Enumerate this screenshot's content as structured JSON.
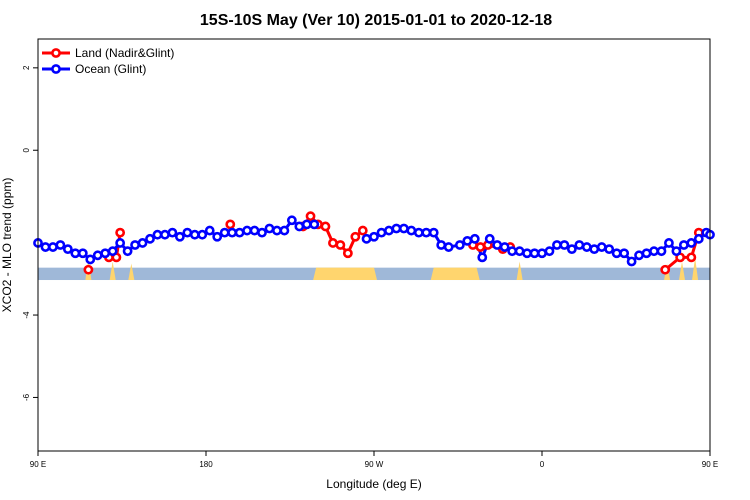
{
  "chart_data": {
    "type": "line",
    "title": "15S-10S May (Ver 10)   2015-01-01 to 2020-12-18",
    "xlabel": "Longitude (deg E)",
    "ylabel": "XCO2 - MLO trend (ppm)",
    "xlim": [
      -90,
      270
    ],
    "ylim": [
      -7.3,
      2.7
    ],
    "x_ticks": [
      -90,
      0,
      90,
      180,
      270
    ],
    "x_tick_labels": [
      "90 E",
      "180",
      "90 W",
      "0",
      "90 E"
    ],
    "y_ticks": [
      -6,
      -4,
      0,
      2
    ],
    "y_tick_labels": [
      "-6",
      "-4",
      "0",
      "2"
    ],
    "grid": false,
    "legend_position": "top-left",
    "series": [
      {
        "name": "Land (Nadir&Glint)",
        "color": "#ff0000",
        "points": [
          [
            -63,
            -2.9
          ],
          [
            -52,
            -2.6
          ],
          [
            -48,
            -2.6
          ],
          [
            -46,
            -2.0
          ],
          [
            13,
            -1.8
          ],
          [
            52,
            -1.85
          ],
          [
            56,
            -1.6
          ],
          [
            60,
            -1.8
          ],
          [
            64,
            -1.85
          ],
          [
            68,
            -2.25
          ],
          [
            72,
            -2.3
          ],
          [
            76,
            -2.5
          ],
          [
            80,
            -2.1
          ],
          [
            84,
            -1.95
          ],
          [
            143,
            -2.3
          ],
          [
            147,
            -2.35
          ],
          [
            151,
            -2.3
          ],
          [
            159,
            -2.4
          ],
          [
            163,
            -2.35
          ],
          [
            246,
            -2.9
          ],
          [
            254,
            -2.6
          ],
          [
            260,
            -2.6
          ],
          [
            264,
            -2.0
          ]
        ]
      },
      {
        "name": "Ocean (Glint)",
        "color": "#0000ff",
        "points": [
          [
            -90,
            -2.25
          ],
          [
            -86,
            -2.35
          ],
          [
            -82,
            -2.35
          ],
          [
            -78,
            -2.3
          ],
          [
            -74,
            -2.4
          ],
          [
            -70,
            -2.5
          ],
          [
            -66,
            -2.5
          ],
          [
            -62,
            -2.65
          ],
          [
            -58,
            -2.55
          ],
          [
            -54,
            -2.5
          ],
          [
            -50,
            -2.45
          ],
          [
            -46,
            -2.25
          ],
          [
            -42,
            -2.45
          ],
          [
            -38,
            -2.3
          ],
          [
            -34,
            -2.25
          ],
          [
            -30,
            -2.15
          ],
          [
            -26,
            -2.05
          ],
          [
            -22,
            -2.05
          ],
          [
            -18,
            -2.0
          ],
          [
            -14,
            -2.1
          ],
          [
            -10,
            -2.0
          ],
          [
            -6,
            -2.05
          ],
          [
            -2,
            -2.05
          ],
          [
            2,
            -1.95
          ],
          [
            6,
            -2.1
          ],
          [
            10,
            -2.0
          ],
          [
            14,
            -2.0
          ],
          [
            18,
            -2.0
          ],
          [
            22,
            -1.95
          ],
          [
            26,
            -1.95
          ],
          [
            30,
            -2.0
          ],
          [
            34,
            -1.9
          ],
          [
            38,
            -1.95
          ],
          [
            42,
            -1.95
          ],
          [
            46,
            -1.7
          ],
          [
            50,
            -1.85
          ],
          [
            54,
            -1.8
          ],
          [
            58,
            -1.8
          ],
          [
            86,
            -2.15
          ],
          [
            90,
            -2.1
          ],
          [
            94,
            -2.0
          ],
          [
            98,
            -1.95
          ],
          [
            102,
            -1.9
          ],
          [
            106,
            -1.9
          ],
          [
            110,
            -1.95
          ],
          [
            114,
            -2.0
          ],
          [
            118,
            -2.0
          ],
          [
            122,
            -2.0
          ],
          [
            126,
            -2.3
          ],
          [
            130,
            -2.35
          ],
          [
            136,
            -2.3
          ],
          [
            140,
            -2.2
          ],
          [
            144,
            -2.15
          ],
          [
            148,
            -2.6
          ],
          [
            152,
            -2.15
          ],
          [
            156,
            -2.3
          ],
          [
            160,
            -2.35
          ],
          [
            164,
            -2.45
          ],
          [
            168,
            -2.45
          ],
          [
            172,
            -2.5
          ],
          [
            176,
            -2.5
          ],
          [
            180,
            -2.5
          ],
          [
            184,
            -2.45
          ],
          [
            188,
            -2.3
          ],
          [
            192,
            -2.3
          ],
          [
            196,
            -2.4
          ],
          [
            200,
            -2.3
          ],
          [
            204,
            -2.35
          ],
          [
            208,
            -2.4
          ],
          [
            212,
            -2.35
          ],
          [
            216,
            -2.4
          ],
          [
            220,
            -2.5
          ],
          [
            224,
            -2.5
          ],
          [
            228,
            -2.7
          ],
          [
            232,
            -2.55
          ],
          [
            236,
            -2.5
          ],
          [
            240,
            -2.45
          ],
          [
            244,
            -2.45
          ],
          [
            248,
            -2.25
          ],
          [
            252,
            -2.45
          ],
          [
            256,
            -2.3
          ],
          [
            260,
            -2.25
          ],
          [
            264,
            -2.15
          ],
          [
            268,
            -2.0
          ],
          [
            270,
            -2.05
          ]
        ]
      }
    ],
    "surface_band": {
      "ymin": -3.15,
      "ymax": -2.85,
      "ocean_color": "#9fb8d8",
      "land_color": "#ffd56e",
      "land_segments": [
        [
          59,
          90
        ],
        [
          122,
          145
        ]
      ],
      "land_spikes": [
        [
          -63,
          -2.6
        ],
        [
          -50,
          -2.7
        ],
        [
          -40,
          -2.75
        ],
        [
          247,
          -2.75
        ],
        [
          255,
          -2.7
        ],
        [
          262,
          -2.6
        ],
        [
          168,
          -2.7
        ]
      ]
    }
  }
}
